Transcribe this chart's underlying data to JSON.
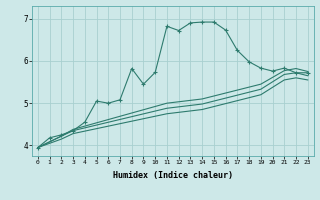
{
  "xlabel": "Humidex (Indice chaleur)",
  "background_color": "#cde8e8",
  "line_color": "#2e7b6e",
  "grid_color": "#a8d0d0",
  "xlim": [
    -0.5,
    23.5
  ],
  "ylim": [
    3.75,
    7.3
  ],
  "yticks": [
    4,
    5,
    6,
    7
  ],
  "xticks": [
    0,
    1,
    2,
    3,
    4,
    5,
    6,
    7,
    8,
    9,
    10,
    11,
    12,
    13,
    14,
    15,
    16,
    17,
    18,
    19,
    20,
    21,
    22,
    23
  ],
  "series1_x": [
    0,
    1,
    2,
    3,
    4,
    5,
    6,
    7,
    8,
    9,
    10,
    11,
    12,
    13,
    14,
    15,
    16,
    17,
    18,
    19,
    20,
    21,
    22,
    23
  ],
  "series1_y": [
    3.95,
    4.18,
    4.25,
    4.35,
    4.55,
    5.05,
    5.0,
    5.08,
    5.82,
    5.45,
    5.73,
    6.82,
    6.72,
    6.9,
    6.92,
    6.92,
    6.73,
    6.25,
    5.98,
    5.83,
    5.76,
    5.83,
    5.72,
    5.72
  ],
  "series2_x": [
    0,
    2,
    3,
    11,
    14,
    19,
    21,
    22,
    23
  ],
  "series2_y": [
    3.95,
    4.22,
    4.38,
    5.0,
    5.1,
    5.45,
    5.77,
    5.82,
    5.75
  ],
  "series3_x": [
    0,
    2,
    3,
    11,
    14,
    19,
    21,
    22,
    23
  ],
  "series3_y": [
    3.95,
    4.22,
    4.35,
    4.88,
    4.98,
    5.33,
    5.68,
    5.72,
    5.65
  ],
  "series4_x": [
    0,
    2,
    3,
    11,
    14,
    19,
    21,
    22,
    23
  ],
  "series4_y": [
    3.95,
    4.15,
    4.28,
    4.75,
    4.85,
    5.2,
    5.55,
    5.6,
    5.55
  ]
}
